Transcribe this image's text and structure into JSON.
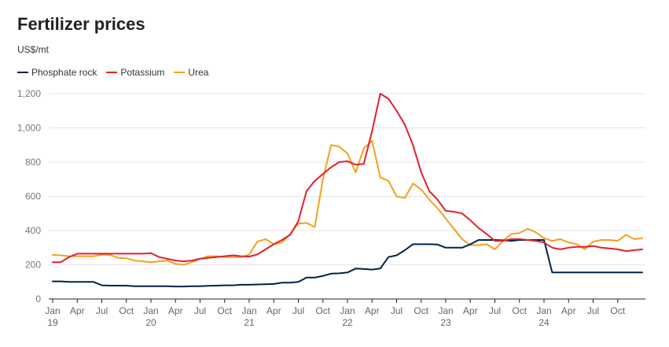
{
  "chart_data": {
    "type": "line",
    "title": "Fertilizer prices",
    "ylabel": "US$/mt",
    "ylim": [
      0,
      1200
    ],
    "yticks": [
      0,
      200,
      400,
      600,
      800,
      1000,
      1200
    ],
    "ytick_labels": [
      "0",
      "200",
      "400",
      "600",
      "800",
      "1,000",
      "1,200"
    ],
    "grid": "horizontal",
    "legend_position": "top-left",
    "x_start": "2019-01",
    "x_ticks": [
      {
        "month": 0,
        "label": "Jan",
        "year": "19"
      },
      {
        "month": 3,
        "label": "Apr",
        "year": ""
      },
      {
        "month": 6,
        "label": "Jul",
        "year": ""
      },
      {
        "month": 9,
        "label": "Oct",
        "year": ""
      },
      {
        "month": 12,
        "label": "Jan",
        "year": "20"
      },
      {
        "month": 15,
        "label": "Apr",
        "year": ""
      },
      {
        "month": 18,
        "label": "Jul",
        "year": ""
      },
      {
        "month": 21,
        "label": "Oct",
        "year": ""
      },
      {
        "month": 24,
        "label": "Jan",
        "year": "21"
      },
      {
        "month": 27,
        "label": "Apr",
        "year": ""
      },
      {
        "month": 30,
        "label": "Jul",
        "year": ""
      },
      {
        "month": 33,
        "label": "Oct",
        "year": ""
      },
      {
        "month": 36,
        "label": "Jan",
        "year": "22"
      },
      {
        "month": 39,
        "label": "Apr",
        "year": ""
      },
      {
        "month": 42,
        "label": "Jul",
        "year": ""
      },
      {
        "month": 45,
        "label": "Oct",
        "year": ""
      },
      {
        "month": 48,
        "label": "Jan",
        "year": "23"
      },
      {
        "month": 51,
        "label": "Apr",
        "year": ""
      },
      {
        "month": 54,
        "label": "Jul",
        "year": ""
      },
      {
        "month": 57,
        "label": "Oct",
        "year": ""
      },
      {
        "month": 60,
        "label": "Jan",
        "year": "24"
      },
      {
        "month": 63,
        "label": "Apr",
        "year": ""
      },
      {
        "month": 66,
        "label": "Jul",
        "year": ""
      },
      {
        "month": 69,
        "label": "Oct",
        "year": ""
      }
    ],
    "series": [
      {
        "name": "Phosphate rock",
        "color": "#002345",
        "values": [
          103,
          103,
          100,
          100,
          100,
          100,
          80,
          78,
          78,
          78,
          75,
          75,
          75,
          75,
          75,
          73,
          73,
          75,
          75,
          77,
          78,
          80,
          80,
          83,
          83,
          85,
          86,
          88,
          95,
          95,
          100,
          125,
          125,
          135,
          148,
          150,
          155,
          178,
          175,
          172,
          178,
          245,
          255,
          285,
          320,
          320,
          320,
          318,
          300,
          300,
          300,
          320,
          345,
          345,
          345,
          343,
          340,
          345,
          345,
          345,
          345,
          155,
          155,
          155,
          155,
          155,
          155,
          155,
          155,
          155,
          155,
          155,
          155
        ]
      },
      {
        "name": "Potassium",
        "color": "#E1202F",
        "values": [
          215,
          215,
          245,
          265,
          265,
          265,
          265,
          265,
          265,
          265,
          265,
          265,
          268,
          245,
          235,
          225,
          220,
          225,
          235,
          240,
          245,
          250,
          255,
          250,
          248,
          260,
          290,
          320,
          345,
          375,
          455,
          630,
          690,
          730,
          770,
          800,
          805,
          785,
          790,
          980,
          1200,
          1170,
          1100,
          1020,
          900,
          740,
          630,
          580,
          515,
          510,
          500,
          460,
          415,
          380,
          340,
          340,
          350,
          350,
          345,
          340,
          330,
          300,
          290,
          300,
          305,
          305,
          310,
          300,
          295,
          290,
          280,
          285,
          290
        ]
      },
      {
        "name": "Urea",
        "color": "#F3A01E",
        "values": [
          258,
          255,
          250,
          250,
          250,
          250,
          258,
          258,
          240,
          238,
          225,
          220,
          215,
          220,
          225,
          205,
          200,
          215,
          235,
          250,
          250,
          245,
          245,
          245,
          260,
          335,
          350,
          320,
          330,
          380,
          440,
          445,
          420,
          700,
          900,
          890,
          850,
          740,
          880,
          925,
          710,
          690,
          600,
          590,
          675,
          640,
          580,
          530,
          470,
          410,
          350,
          315,
          315,
          320,
          290,
          340,
          380,
          385,
          410,
          390,
          355,
          340,
          350,
          330,
          320,
          290,
          335,
          345,
          345,
          340,
          375,
          350,
          355
        ]
      }
    ]
  }
}
